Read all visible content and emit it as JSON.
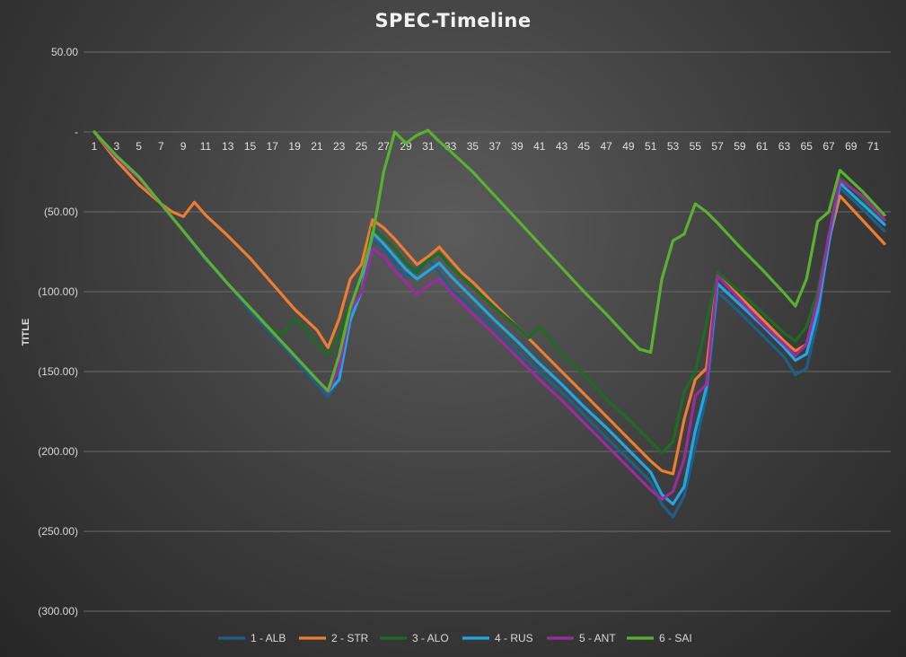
{
  "chart_data": {
    "type": "line",
    "title": "SPEC-Timeline",
    "ylabel": "TITLE",
    "xlabel": "",
    "ylim": [
      -300,
      50
    ],
    "ytick_labels": [
      "50.00",
      "-",
      "(50.00)",
      "(100.00)",
      "(150.00)",
      "(200.00)",
      "(250.00)",
      "(300.00)"
    ],
    "ytick_values": [
      50,
      0,
      -50,
      -100,
      -150,
      -200,
      -250,
      -300
    ],
    "xtick_labels": [
      "1",
      "3",
      "5",
      "7",
      "9",
      "11",
      "13",
      "15",
      "17",
      "19",
      "21",
      "23",
      "25",
      "27",
      "29",
      "31",
      "33",
      "35",
      "37",
      "39",
      "41",
      "43",
      "45",
      "47",
      "49",
      "51",
      "53",
      "55",
      "57",
      "59",
      "61",
      "63",
      "65",
      "67",
      "69",
      "71"
    ],
    "x_range": [
      1,
      72
    ],
    "legend_position": "bottom",
    "grid": true,
    "series": [
      {
        "name": "1 - ALB",
        "color": "#1f5f86",
        "points": [
          [
            1,
            0
          ],
          [
            3,
            -16
          ],
          [
            5,
            -28
          ],
          [
            7,
            -45
          ],
          [
            9,
            -62
          ],
          [
            11,
            -80
          ],
          [
            13,
            -95
          ],
          [
            15,
            -112
          ],
          [
            17,
            -127
          ],
          [
            19,
            -142
          ],
          [
            21,
            -158
          ],
          [
            22,
            -166
          ],
          [
            23,
            -155
          ],
          [
            24,
            -118
          ],
          [
            25,
            -100
          ],
          [
            26,
            -68
          ],
          [
            27,
            -73
          ],
          [
            28,
            -82
          ],
          [
            29,
            -91
          ],
          [
            30,
            -86
          ],
          [
            31,
            -80
          ],
          [
            32,
            -88
          ],
          [
            33,
            -98
          ],
          [
            35,
            -110
          ],
          [
            37,
            -123
          ],
          [
            39,
            -137
          ],
          [
            41,
            -150
          ],
          [
            43,
            -163
          ],
          [
            45,
            -177
          ],
          [
            47,
            -191
          ],
          [
            49,
            -205
          ],
          [
            51,
            -219
          ],
          [
            52,
            -233
          ],
          [
            53,
            -241
          ],
          [
            54,
            -228
          ],
          [
            55,
            -197
          ],
          [
            56,
            -165
          ],
          [
            57,
            -100
          ],
          [
            59,
            -113
          ],
          [
            61,
            -127
          ],
          [
            63,
            -141
          ],
          [
            64,
            -152
          ],
          [
            65,
            -148
          ],
          [
            66,
            -118
          ],
          [
            67,
            -65
          ],
          [
            68,
            -35
          ],
          [
            70,
            -48
          ],
          [
            72,
            -62
          ]
        ]
      },
      {
        "name": "2 - STR",
        "color": "#ed7d31",
        "points": [
          [
            1,
            0
          ],
          [
            3,
            -18
          ],
          [
            5,
            -33
          ],
          [
            7,
            -45
          ],
          [
            8,
            -50
          ],
          [
            9,
            -53
          ],
          [
            10,
            -44
          ],
          [
            11,
            -52
          ],
          [
            13,
            -65
          ],
          [
            15,
            -79
          ],
          [
            17,
            -95
          ],
          [
            19,
            -111
          ],
          [
            21,
            -124
          ],
          [
            22,
            -135
          ],
          [
            23,
            -117
          ],
          [
            24,
            -92
          ],
          [
            25,
            -83
          ],
          [
            26,
            -55
          ],
          [
            27,
            -60
          ],
          [
            28,
            -67
          ],
          [
            29,
            -75
          ],
          [
            30,
            -83
          ],
          [
            31,
            -78
          ],
          [
            32,
            -72
          ],
          [
            33,
            -80
          ],
          [
            34,
            -88
          ],
          [
            35,
            -94
          ],
          [
            37,
            -108
          ],
          [
            39,
            -122
          ],
          [
            41,
            -136
          ],
          [
            43,
            -150
          ],
          [
            45,
            -164
          ],
          [
            47,
            -178
          ],
          [
            49,
            -192
          ],
          [
            51,
            -206
          ],
          [
            52,
            -212
          ],
          [
            53,
            -214
          ],
          [
            54,
            -180
          ],
          [
            55,
            -155
          ],
          [
            56,
            -148
          ],
          [
            57,
            -90
          ],
          [
            59,
            -103
          ],
          [
            61,
            -117
          ],
          [
            63,
            -131
          ],
          [
            64,
            -137
          ],
          [
            65,
            -133
          ],
          [
            66,
            -105
          ],
          [
            67,
            -68
          ],
          [
            68,
            -40
          ],
          [
            70,
            -55
          ],
          [
            72,
            -70
          ]
        ]
      },
      {
        "name": "3 - ALO",
        "color": "#1e6b23",
        "points": [
          [
            1,
            0
          ],
          [
            3,
            -15
          ],
          [
            5,
            -28
          ],
          [
            7,
            -45
          ],
          [
            9,
            -62
          ],
          [
            11,
            -79
          ],
          [
            13,
            -95
          ],
          [
            15,
            -110
          ],
          [
            17,
            -124
          ],
          [
            18,
            -126
          ],
          [
            19,
            -117
          ],
          [
            20,
            -124
          ],
          [
            21,
            -133
          ],
          [
            22,
            -140
          ],
          [
            23,
            -128
          ],
          [
            24,
            -108
          ],
          [
            25,
            -95
          ],
          [
            26,
            -60
          ],
          [
            27,
            -66
          ],
          [
            28,
            -73
          ],
          [
            29,
            -82
          ],
          [
            30,
            -88
          ],
          [
            31,
            -80
          ],
          [
            32,
            -76
          ],
          [
            33,
            -84
          ],
          [
            35,
            -97
          ],
          [
            37,
            -110
          ],
          [
            39,
            -122
          ],
          [
            40,
            -129
          ],
          [
            41,
            -122
          ],
          [
            42,
            -130
          ],
          [
            43,
            -139
          ],
          [
            45,
            -152
          ],
          [
            47,
            -167
          ],
          [
            49,
            -180
          ],
          [
            51,
            -194
          ],
          [
            52,
            -201
          ],
          [
            53,
            -194
          ],
          [
            54,
            -163
          ],
          [
            55,
            -150
          ],
          [
            56,
            -120
          ],
          [
            57,
            -88
          ],
          [
            59,
            -100
          ],
          [
            61,
            -113
          ],
          [
            63,
            -126
          ],
          [
            64,
            -131
          ],
          [
            65,
            -122
          ],
          [
            66,
            -100
          ],
          [
            67,
            -65
          ],
          [
            68,
            -28
          ],
          [
            70,
            -42
          ],
          [
            72,
            -58
          ]
        ]
      },
      {
        "name": "4 - RUS",
        "color": "#22a6e3",
        "points": [
          [
            1,
            0
          ],
          [
            3,
            -16
          ],
          [
            5,
            -29
          ],
          [
            7,
            -45
          ],
          [
            9,
            -62
          ],
          [
            11,
            -79
          ],
          [
            13,
            -95
          ],
          [
            15,
            -110
          ],
          [
            17,
            -125
          ],
          [
            19,
            -140
          ],
          [
            21,
            -155
          ],
          [
            22,
            -163
          ],
          [
            23,
            -155
          ],
          [
            24,
            -118
          ],
          [
            25,
            -100
          ],
          [
            26,
            -63
          ],
          [
            27,
            -70
          ],
          [
            28,
            -78
          ],
          [
            29,
            -86
          ],
          [
            30,
            -92
          ],
          [
            31,
            -87
          ],
          [
            32,
            -82
          ],
          [
            33,
            -90
          ],
          [
            35,
            -104
          ],
          [
            37,
            -118
          ],
          [
            39,
            -131
          ],
          [
            41,
            -145
          ],
          [
            43,
            -158
          ],
          [
            45,
            -172
          ],
          [
            47,
            -185
          ],
          [
            49,
            -199
          ],
          [
            51,
            -213
          ],
          [
            52,
            -227
          ],
          [
            53,
            -233
          ],
          [
            54,
            -222
          ],
          [
            55,
            -187
          ],
          [
            56,
            -160
          ],
          [
            57,
            -95
          ],
          [
            59,
            -108
          ],
          [
            61,
            -121
          ],
          [
            63,
            -135
          ],
          [
            64,
            -143
          ],
          [
            65,
            -139
          ],
          [
            66,
            -112
          ],
          [
            67,
            -70
          ],
          [
            68,
            -32
          ],
          [
            70,
            -45
          ],
          [
            72,
            -58
          ]
        ]
      },
      {
        "name": "5 - ANT",
        "color": "#9b2c9e",
        "points": [
          [
            1,
            0
          ],
          [
            3,
            -16
          ],
          [
            5,
            -29
          ],
          [
            7,
            -45
          ],
          [
            9,
            -62
          ],
          [
            11,
            -79
          ],
          [
            13,
            -95
          ],
          [
            15,
            -110
          ],
          [
            17,
            -125
          ],
          [
            19,
            -140
          ],
          [
            21,
            -155
          ],
          [
            22,
            -163
          ],
          [
            23,
            -148
          ],
          [
            24,
            -112
          ],
          [
            25,
            -100
          ],
          [
            26,
            -73
          ],
          [
            27,
            -78
          ],
          [
            28,
            -87
          ],
          [
            29,
            -94
          ],
          [
            30,
            -102
          ],
          [
            31,
            -96
          ],
          [
            32,
            -92
          ],
          [
            33,
            -100
          ],
          [
            35,
            -114
          ],
          [
            37,
            -127
          ],
          [
            39,
            -141
          ],
          [
            41,
            -155
          ],
          [
            43,
            -168
          ],
          [
            45,
            -182
          ],
          [
            47,
            -196
          ],
          [
            49,
            -210
          ],
          [
            51,
            -224
          ],
          [
            52,
            -230
          ],
          [
            53,
            -225
          ],
          [
            54,
            -205
          ],
          [
            55,
            -165
          ],
          [
            56,
            -158
          ],
          [
            57,
            -90
          ],
          [
            59,
            -105
          ],
          [
            61,
            -120
          ],
          [
            63,
            -133
          ],
          [
            64,
            -140
          ],
          [
            65,
            -133
          ],
          [
            66,
            -105
          ],
          [
            67,
            -65
          ],
          [
            68,
            -30
          ],
          [
            70,
            -40
          ],
          [
            72,
            -55
          ]
        ]
      },
      {
        "name": "6 - SAI",
        "color": "#5ab030",
        "points": [
          [
            1,
            0
          ],
          [
            3,
            -15
          ],
          [
            5,
            -28
          ],
          [
            7,
            -45
          ],
          [
            9,
            -62
          ],
          [
            11,
            -79
          ],
          [
            13,
            -95
          ],
          [
            15,
            -110
          ],
          [
            17,
            -125
          ],
          [
            19,
            -140
          ],
          [
            21,
            -155
          ],
          [
            22,
            -162
          ],
          [
            23,
            -140
          ],
          [
            24,
            -110
          ],
          [
            25,
            -90
          ],
          [
            26,
            -65
          ],
          [
            27,
            -25
          ],
          [
            28,
            0
          ],
          [
            29,
            -7
          ],
          [
            30,
            -2
          ],
          [
            31,
            1
          ],
          [
            32,
            -6
          ],
          [
            33,
            -12
          ],
          [
            35,
            -25
          ],
          [
            37,
            -40
          ],
          [
            39,
            -55
          ],
          [
            41,
            -70
          ],
          [
            43,
            -85
          ],
          [
            45,
            -100
          ],
          [
            47,
            -114
          ],
          [
            49,
            -129
          ],
          [
            50,
            -136
          ],
          [
            51,
            -138
          ],
          [
            52,
            -92
          ],
          [
            53,
            -68
          ],
          [
            54,
            -64
          ],
          [
            55,
            -45
          ],
          [
            56,
            -50
          ],
          [
            57,
            -57
          ],
          [
            59,
            -72
          ],
          [
            61,
            -86
          ],
          [
            63,
            -101
          ],
          [
            64,
            -109
          ],
          [
            65,
            -92
          ],
          [
            66,
            -56
          ],
          [
            67,
            -50
          ],
          [
            68,
            -24
          ],
          [
            70,
            -37
          ],
          [
            72,
            -52
          ]
        ]
      }
    ]
  }
}
